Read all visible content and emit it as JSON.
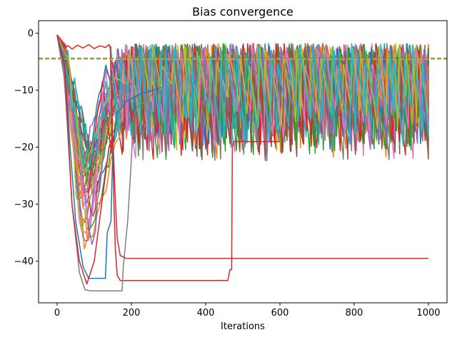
{
  "chart_data": {
    "type": "line",
    "title": "Bias convergence",
    "xlabel": "Iterations",
    "ylabel": "",
    "xlim": [
      -50,
      1050
    ],
    "ylim": [
      -47.3,
      2.2
    ],
    "xticks": [
      0,
      200,
      400,
      600,
      800,
      1000
    ],
    "yticks": [
      0,
      -10,
      -20,
      -30,
      -40
    ],
    "ytick_labels": [
      "0",
      "−10",
      "−20",
      "−30",
      "−40"
    ],
    "grid": false,
    "palette": [
      "#1f77b4",
      "#ff7f0e",
      "#2ca02c",
      "#d62728",
      "#9467bd",
      "#8c564b",
      "#e377c2",
      "#7f7f7f",
      "#bcbd22",
      "#17becf"
    ],
    "noisy_series_count": 40,
    "series": [
      {
        "color": "#d62728",
        "points": [
          [
            0,
            -0.3
          ],
          [
            18,
            -2
          ],
          [
            22,
            -2.5
          ],
          [
            30,
            -2.2
          ],
          [
            40,
            -2.8
          ],
          [
            55,
            -2.1
          ],
          [
            70,
            -2.6
          ],
          [
            85,
            -2.0
          ],
          [
            100,
            -2.7
          ],
          [
            115,
            -2.2
          ],
          [
            130,
            -2.5
          ],
          [
            140,
            -2.0
          ],
          [
            143,
            -2.6
          ],
          [
            147,
            -10
          ],
          [
            150,
            -20
          ],
          [
            153,
            -30
          ],
          [
            157,
            -38
          ],
          [
            162,
            -42.5
          ],
          [
            170,
            -43.4
          ],
          [
            300,
            -43.4
          ],
          [
            460,
            -43.4
          ],
          [
            465,
            -41.5
          ],
          [
            470,
            -41.5
          ],
          [
            472,
            -20
          ],
          [
            476,
            -19
          ],
          [
            600,
            -19
          ]
        ]
      },
      {
        "color": "#1f77b4",
        "points": [
          [
            0,
            -0.3
          ],
          [
            20,
            -5
          ],
          [
            35,
            -20
          ],
          [
            50,
            -33
          ],
          [
            70,
            -41
          ],
          [
            85,
            -43
          ],
          [
            130,
            -43
          ],
          [
            135,
            -35
          ],
          [
            145,
            -33
          ],
          [
            150,
            -20
          ],
          [
            160,
            -14
          ],
          [
            175,
            -13
          ],
          [
            185,
            -12
          ],
          [
            200,
            -11.5
          ],
          [
            230,
            -10.5
          ],
          [
            260,
            -10
          ],
          [
            280,
            -9.5
          ]
        ]
      },
      {
        "color": "#7f7f7f",
        "points": [
          [
            0,
            -0.3
          ],
          [
            20,
            -8
          ],
          [
            40,
            -30
          ],
          [
            60,
            -42
          ],
          [
            75,
            -45
          ],
          [
            90,
            -45.2
          ],
          [
            175,
            -45.2
          ],
          [
            178,
            -41
          ],
          [
            190,
            -33
          ],
          [
            200,
            -22
          ],
          [
            205,
            -15
          ],
          [
            215,
            -13
          ],
          [
            235,
            -12
          ],
          [
            260,
            -10.5
          ]
        ]
      },
      {
        "color": "#d62728",
        "points": [
          [
            0,
            -0.3
          ],
          [
            20,
            -6
          ],
          [
            40,
            -30
          ],
          [
            60,
            -40
          ],
          [
            80,
            -44
          ],
          [
            100,
            -40
          ],
          [
            120,
            -30
          ],
          [
            140,
            -20
          ],
          [
            150,
            -18
          ],
          [
            156,
            -28
          ],
          [
            162,
            -36
          ],
          [
            170,
            -39
          ],
          [
            185,
            -39.5
          ],
          [
            400,
            -39.5
          ],
          [
            1000,
            -39.5
          ]
        ]
      }
    ],
    "reference_lines": [
      {
        "y": -4.4,
        "color": "#7f7f7f",
        "style": "dashed"
      },
      {
        "y": -4.55,
        "color": "#bcbd22",
        "style": "dashed"
      }
    ],
    "description_note": ""
  }
}
